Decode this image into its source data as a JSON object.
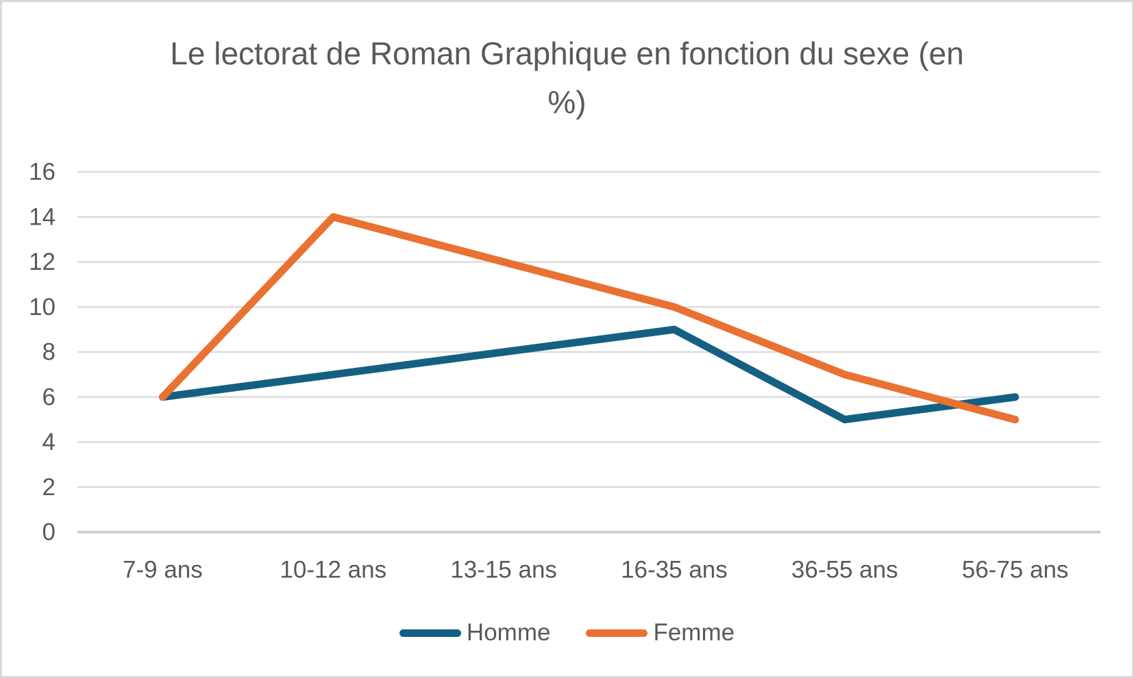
{
  "page": {
    "background_color": "#FFFFFF",
    "frame_border_color": "#D9D9D9",
    "text_color": "#595959",
    "gridline_color": "#DCDCDC",
    "axis_line_color": "#D0D0D0"
  },
  "chart_data": {
    "type": "line",
    "title": "Le lectorat de Roman Graphique en fonction du sexe (en %)",
    "categories": [
      "7-9 ans",
      "10-12 ans",
      "13-15 ans",
      "16-35 ans",
      "36-55 ans",
      "56-75 ans"
    ],
    "series": [
      {
        "name": "Homme",
        "values": [
          6,
          7,
          8,
          9,
          5,
          6
        ],
        "color": "#156082"
      },
      {
        "name": "Femme",
        "values": [
          6,
          14,
          12,
          10,
          7,
          5
        ],
        "color": "#E97132"
      }
    ],
    "xlabel": "",
    "ylabel": "",
    "ylim": [
      0,
      16
    ],
    "yticks": [
      0,
      2,
      4,
      6,
      8,
      10,
      12,
      14,
      16
    ],
    "grid": true,
    "legend_position": "bottom",
    "legend": [
      "Homme",
      "Femme"
    ]
  }
}
